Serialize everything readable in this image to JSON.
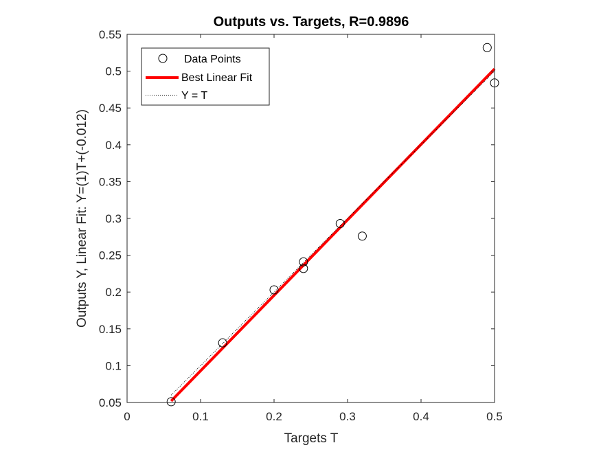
{
  "chart_data": {
    "type": "scatter",
    "title": "Outputs vs. Targets, R=0.9896",
    "xlabel": "Targets T",
    "ylabel": "Outputs Y,  Linear Fit: Y=(1)T+(-0.012)",
    "xlim": [
      0,
      0.5
    ],
    "ylim": [
      0.05,
      0.55
    ],
    "xticks": [
      0,
      0.1,
      0.2,
      0.3,
      0.4,
      0.5
    ],
    "xtick_labels": [
      "0",
      "0.1",
      "0.2",
      "0.3",
      "0.4",
      "0.5"
    ],
    "yticks": [
      0.05,
      0.1,
      0.15,
      0.2,
      0.25,
      0.3,
      0.35,
      0.4,
      0.45,
      0.5,
      0.55
    ],
    "ytick_labels": [
      "0.05",
      "0.1",
      "0.15",
      "0.2",
      "0.25",
      "0.3",
      "0.35",
      "0.4",
      "0.45",
      "0.5",
      "0.55"
    ],
    "grid": false,
    "legend_position": "top-left",
    "series": [
      {
        "name": "Data Points",
        "kind": "markers",
        "marker": "circle",
        "color": "#000000",
        "x": [
          0.06,
          0.13,
          0.2,
          0.24,
          0.24,
          0.29,
          0.32,
          0.49,
          0.5
        ],
        "y": [
          0.051,
          0.131,
          0.203,
          0.241,
          0.232,
          0.293,
          0.276,
          0.532,
          0.484
        ]
      },
      {
        "name": "Best Linear Fit",
        "kind": "line",
        "color": "#ff0000",
        "x": [
          0.06,
          0.5
        ],
        "y": [
          0.052,
          0.503
        ]
      },
      {
        "name": "Y = T",
        "kind": "dotted-line",
        "color": "#000000",
        "x": [
          0.06,
          0.5
        ],
        "y": [
          0.06,
          0.5
        ]
      }
    ]
  }
}
